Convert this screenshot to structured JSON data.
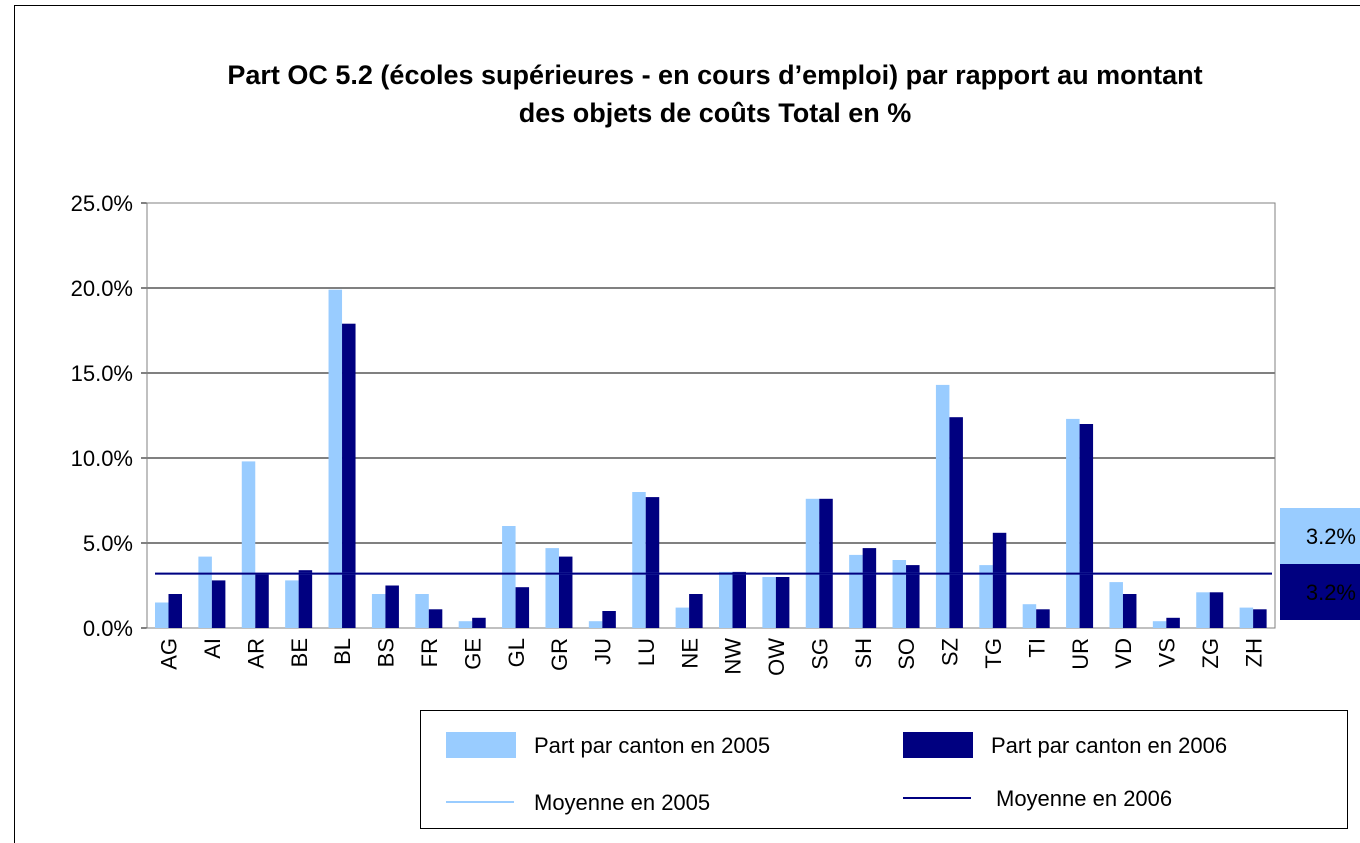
{
  "chart_data": {
    "type": "bar",
    "title": "Part OC 5.2 (écoles supérieures - en cours d’emploi) par rapport au montant des objets de coûts  Total en %",
    "categories": [
      "AG",
      "AI",
      "AR",
      "BE",
      "BL",
      "BS",
      "FR",
      "GE",
      "GL",
      "GR",
      "JU",
      "LU",
      "NE",
      "NW",
      "OW",
      "SG",
      "SH",
      "SO",
      "SZ",
      "TG",
      "TI",
      "UR",
      "VD",
      "VS",
      "ZG",
      "ZH"
    ],
    "series": [
      {
        "name": "Part par canton en 2005",
        "color": "#99ccff",
        "values": [
          1.5,
          4.2,
          9.8,
          2.8,
          19.9,
          2.0,
          2.0,
          0.4,
          6.0,
          4.7,
          0.4,
          8.0,
          1.2,
          3.3,
          3.0,
          7.6,
          4.3,
          4.0,
          14.3,
          3.7,
          1.4,
          12.3,
          2.7,
          0.4,
          2.1,
          1.2
        ]
      },
      {
        "name": "Part par canton en 2006",
        "color": "#000080",
        "values": [
          2.0,
          2.8,
          3.2,
          3.4,
          17.9,
          2.5,
          1.1,
          0.6,
          2.4,
          4.2,
          1.0,
          7.7,
          2.0,
          3.3,
          3.0,
          7.6,
          4.7,
          3.7,
          12.4,
          5.6,
          1.1,
          12.0,
          2.0,
          0.6,
          2.1,
          1.1
        ]
      }
    ],
    "lines": [
      {
        "name": "Moyenne en 2005",
        "color": "#99ccff",
        "value": 3.2,
        "value_label": "3.2%"
      },
      {
        "name": "Moyenne en 2006",
        "color": "#000080",
        "value": 3.2,
        "value_label": "3.2%"
      }
    ],
    "ylim": [
      0,
      25
    ],
    "yticks": [
      {
        "value": 0,
        "label": "0.0%"
      },
      {
        "value": 5,
        "label": "5.0%"
      },
      {
        "value": 10,
        "label": "10.0%"
      },
      {
        "value": 15,
        "label": "15.0%"
      },
      {
        "value": 20,
        "label": "20.0%"
      },
      {
        "value": 25,
        "label": "25.0%"
      }
    ],
    "grid": true
  }
}
